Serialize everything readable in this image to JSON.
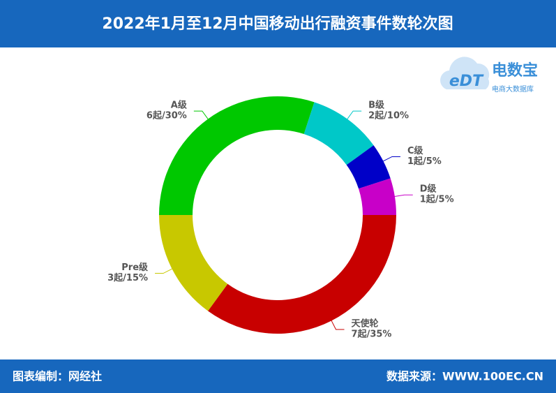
{
  "chart_data": {
    "type": "donut",
    "title": "2022年1月至12月中国移动出行融资事件数轮次图",
    "categories": [
      "A级",
      "B级",
      "C级",
      "D级",
      "天使轮",
      "Pre级"
    ],
    "values": [
      6,
      2,
      1,
      1,
      7,
      3
    ],
    "value_labels": [
      "6起/30%",
      "2起/10%",
      "1起/5%",
      "1起/5%",
      "7起/35%",
      "3起/15%"
    ],
    "colors": [
      "#00c800",
      "#00c8c8",
      "#0000c8",
      "#c800c8",
      "#c80000",
      "#c8c800"
    ]
  },
  "footer": {
    "left": "图表编制：网经社",
    "right": "数据来源：WWW.100EC.CN"
  },
  "logo": {
    "mark": "eDT",
    "name": "电数宝",
    "tagline": "电商大数据库"
  }
}
